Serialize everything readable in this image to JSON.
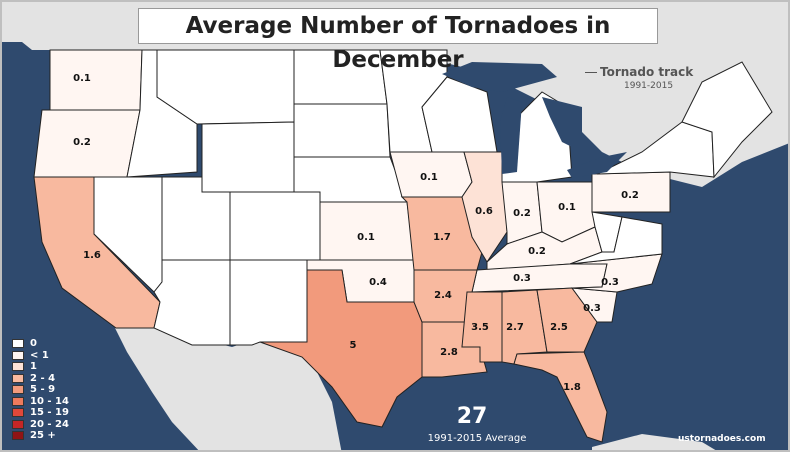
{
  "title": "Average Number of Tornadoes in December",
  "track_legend": {
    "label": "Tornado track",
    "years": "1991-2015"
  },
  "legend": [
    {
      "label": "0",
      "color": "#ffffff"
    },
    {
      "label": "< 1",
      "color": "#fff6f2"
    },
    {
      "label": "1",
      "color": "#fde2d6"
    },
    {
      "label": "2 - 4",
      "color": "#f8b99f"
    },
    {
      "label": "5 - 9",
      "color": "#f29a7c"
    },
    {
      "label": "10 - 14",
      "color": "#ee7a5c"
    },
    {
      "label": "15 - 19",
      "color": "#e0483a"
    },
    {
      "label": "20 - 24",
      "color": "#c42626"
    },
    {
      "label": "25 +",
      "color": "#8f1414"
    }
  ],
  "total": "27",
  "total_label": "1991-2015 Average",
  "source": "ustornadoes.com",
  "colors": {
    "ocean": "#2f4a6e",
    "land": "#e3e3e3",
    "border": "#222222"
  },
  "states": [
    {
      "name": "Washington",
      "label": "0.1"
    },
    {
      "name": "Oregon",
      "label": "0.2"
    },
    {
      "name": "California",
      "label": "1.6"
    },
    {
      "name": "Iowa",
      "label": "0.1"
    },
    {
      "name": "Kansas",
      "label": "0.1"
    },
    {
      "name": "Missouri",
      "label": "1.7"
    },
    {
      "name": "Illinois",
      "label": "0.6"
    },
    {
      "name": "Indiana",
      "label": "0.2"
    },
    {
      "name": "Ohio",
      "label": "0.1"
    },
    {
      "name": "Pennsylvania",
      "label": "0.2"
    },
    {
      "name": "Kentucky",
      "label": "0.2"
    },
    {
      "name": "Oklahoma",
      "label": "0.4"
    },
    {
      "name": "Arkansas",
      "label": "2.4"
    },
    {
      "name": "Tennessee",
      "label": "0.3"
    },
    {
      "name": "North Carolina",
      "label": "0.3"
    },
    {
      "name": "Texas",
      "label": "5"
    },
    {
      "name": "Louisiana",
      "label": "2.8"
    },
    {
      "name": "Mississippi",
      "label": "3.5"
    },
    {
      "name": "Alabama",
      "label": "2.7"
    },
    {
      "name": "Georgia",
      "label": "2.5"
    },
    {
      "name": "South Carolina",
      "label": "0.3"
    },
    {
      "name": "Florida",
      "label": "1.8"
    }
  ]
}
